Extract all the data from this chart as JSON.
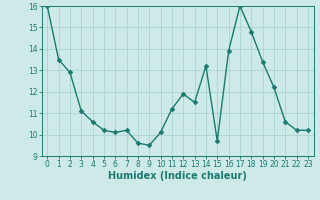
{
  "x": [
    0,
    1,
    2,
    3,
    4,
    5,
    6,
    7,
    8,
    9,
    10,
    11,
    12,
    13,
    14,
    15,
    16,
    17,
    18,
    19,
    20,
    21,
    22,
    23
  ],
  "y": [
    16.0,
    13.5,
    12.9,
    11.1,
    10.6,
    10.2,
    10.1,
    10.2,
    9.6,
    9.5,
    10.1,
    11.2,
    11.9,
    11.5,
    13.2,
    9.7,
    13.9,
    16.0,
    14.8,
    13.4,
    12.2,
    10.6,
    10.2,
    10.2
  ],
  "line_color": "#1a7a6e",
  "marker_color": "#1a7a6e",
  "bg_color": "#ceeae8",
  "grid_color": "#aad4d0",
  "xlabel": "Humidex (Indice chaleur)",
  "ylim": [
    9,
    16
  ],
  "xlim": [
    -0.5,
    23.5
  ],
  "yticks": [
    9,
    10,
    11,
    12,
    13,
    14,
    15,
    16
  ],
  "xticks": [
    0,
    1,
    2,
    3,
    4,
    5,
    6,
    7,
    8,
    9,
    10,
    11,
    12,
    13,
    14,
    15,
    16,
    17,
    18,
    19,
    20,
    21,
    22,
    23
  ],
  "tick_label_size": 5.5,
  "xlabel_size": 7,
  "marker_size": 2.5,
  "line_width": 1.0
}
